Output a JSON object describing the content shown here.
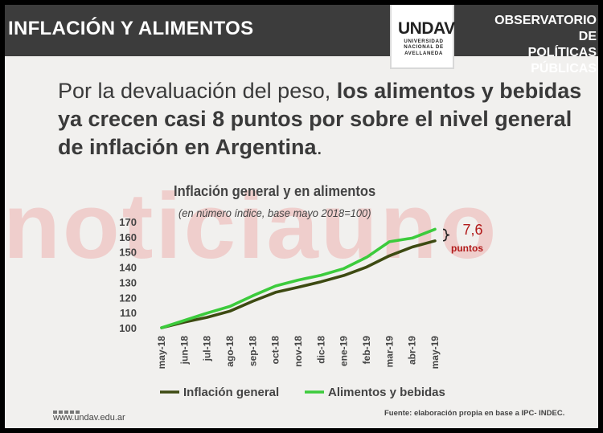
{
  "header": {
    "title": "INFLACIÓN Y ALIMENTOS",
    "logo": {
      "mark": "UNDAV",
      "sub_line1": "UNIVERSIDAD",
      "sub_line2": "NACIONAL DE",
      "sub_line3": "AVELLANEDA"
    },
    "observatory_line1": "OBSERVATORIO DE",
    "observatory_line2": "POLÍTICAS PÚBLICAS"
  },
  "headline": {
    "normal": "Por la devaluación del peso, ",
    "bold": "los alimentos y bebidas ya crecen casi 8 puntos por sobre el nivel general de inflación en Argentina",
    "end": "."
  },
  "watermark": "noticiauno",
  "chart_data": {
    "type": "line",
    "title": "Inflación general y en alimentos",
    "subtitle": "(en número índice, base mayo 2018=100)",
    "categories": [
      "may-18",
      "jun-18",
      "jul-18",
      "ago-18",
      "sep-18",
      "oct-18",
      "nov-18",
      "dic-18",
      "ene-19",
      "feb-19",
      "mar-19",
      "abr-19",
      "may-19"
    ],
    "yticks": [
      100,
      110,
      120,
      130,
      140,
      150,
      160,
      170
    ],
    "ylim": [
      100,
      170
    ],
    "series": [
      {
        "name": "Inflación general",
        "color": "#3d4a12",
        "values": [
          100,
          103.7,
          106.9,
          111,
          117.5,
          123.4,
          126.8,
          130.4,
          134.5,
          140.1,
          147.5,
          153.3,
          157.4
        ]
      },
      {
        "name": "Alimentos y bebidas",
        "color": "#3ccb3c",
        "values": [
          100,
          104.8,
          109.7,
          114.1,
          121.1,
          127.6,
          131.5,
          134.7,
          139.1,
          146.5,
          156.8,
          159.2,
          165
        ]
      }
    ],
    "annotation": {
      "value": "7,6",
      "unit": "puntos",
      "color": "#b11a1a"
    },
    "grid": false,
    "legend_position": "bottom"
  },
  "footer": {
    "url": "www.undav.edu.ar",
    "source": "Fuente: elaboración propia en base a IPC- INDEC."
  }
}
